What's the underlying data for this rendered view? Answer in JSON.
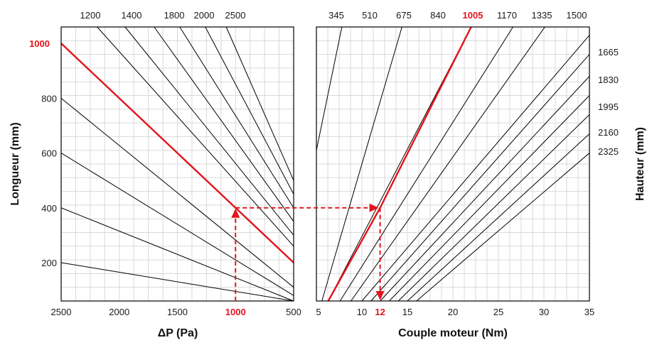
{
  "chart_data": [
    {
      "type": "line",
      "panel": "left",
      "xlabel": "ΔP (Pa)",
      "ylabel": "Longueur (mm)",
      "x_ticks": [
        "2500",
        "2000",
        "1500",
        "1000",
        "500"
      ],
      "y_ticks": [
        "200",
        "400",
        "600",
        "800",
        "1000"
      ],
      "xlim": [
        2500,
        500
      ],
      "ylim": [
        60,
        1060
      ],
      "top_labels": [
        "1200",
        "1400",
        "1800",
        "2000",
        "2500"
      ],
      "series_end_lengths": [
        60,
        260,
        450,
        610,
        750,
        900,
        1060,
        1060,
        1060,
        1060,
        1060,
        1060
      ],
      "highlight_series": {
        "label": "1000",
        "points": [
          [
            2500,
            1000
          ],
          [
            1000,
            400
          ],
          [
            500,
            200
          ]
        ]
      },
      "families": [
        {
          "from": [
            2500,
            200
          ],
          "to": [
            500,
            60
          ]
        },
        {
          "from": [
            2500,
            400
          ],
          "to": [
            500,
            60
          ]
        },
        {
          "from": [
            2500,
            600
          ],
          "to": [
            500,
            80
          ]
        },
        {
          "from": [
            2500,
            800
          ],
          "to": [
            500,
            110
          ]
        },
        {
          "from": [
            2500,
            1000
          ],
          "to": [
            500,
            200
          ]
        },
        {
          "from": [
            2190,
            1060
          ],
          "to": [
            500,
            260
          ]
        },
        {
          "from": [
            1950,
            1060
          ],
          "to": [
            500,
            300
          ]
        },
        {
          "from": [
            1700,
            1060
          ],
          "to": [
            500,
            350
          ]
        },
        {
          "from": [
            1480,
            1060
          ],
          "to": [
            500,
            400
          ]
        },
        {
          "from": [
            1260,
            1060
          ],
          "to": [
            500,
            450
          ]
        },
        {
          "from": [
            1080,
            1060
          ],
          "to": [
            500,
            500
          ]
        }
      ],
      "example": {
        "x": 1000,
        "y": 400,
        "x_label": "1000",
        "y_label": "1000"
      }
    },
    {
      "type": "line",
      "panel": "right",
      "xlabel": "Couple moteur (Nm)",
      "ylabel": "Hauteur (mm)",
      "x_ticks": [
        "5",
        "10",
        "12",
        "15",
        "20",
        "25",
        "30",
        "35"
      ],
      "xlim": [
        5,
        35
      ],
      "ylim": [
        60,
        1060
      ],
      "top_labels": [
        "345",
        "510",
        "675",
        "840",
        "1005",
        "1170",
        "1335",
        "1500"
      ],
      "right_labels": [
        "1665",
        "1830",
        "1995",
        "2160",
        "2325"
      ],
      "highlight_series": {
        "label": "1005",
        "points": [
          [
            6.3,
            60
          ],
          [
            12,
            400
          ],
          [
            22,
            1060
          ]
        ]
      },
      "families": [
        {
          "from": [
            5,
            610
          ],
          "to": [
            7.8,
            1060
          ]
        },
        {
          "from": [
            5.6,
            60
          ],
          "to": [
            14.4,
            1060
          ]
        },
        {
          "from": [
            6.3,
            60
          ],
          "to": [
            22,
            1060
          ]
        },
        {
          "from": [
            7.6,
            60
          ],
          "to": [
            26.6,
            1060
          ]
        },
        {
          "from": [
            8.8,
            60
          ],
          "to": [
            30.1,
            1060
          ]
        },
        {
          "from": [
            10,
            60
          ],
          "to": [
            35,
            1030
          ]
        },
        {
          "from": [
            11,
            60
          ],
          "to": [
            35,
            960
          ]
        },
        {
          "from": [
            12,
            60
          ],
          "to": [
            35,
            880
          ]
        },
        {
          "from": [
            13,
            60
          ],
          "to": [
            35,
            810
          ]
        },
        {
          "from": [
            14,
            60
          ],
          "to": [
            35,
            740
          ]
        },
        {
          "from": [
            15,
            60
          ],
          "to": [
            35,
            670
          ]
        },
        {
          "from": [
            16,
            60
          ],
          "to": [
            35,
            600
          ]
        }
      ],
      "example": {
        "x": 12,
        "y": 400,
        "x_label": "12",
        "top_label": "1005"
      }
    }
  ],
  "colors": {
    "highlight": "#e3141b",
    "line": "#000000",
    "grid": "#d9d9d9"
  }
}
